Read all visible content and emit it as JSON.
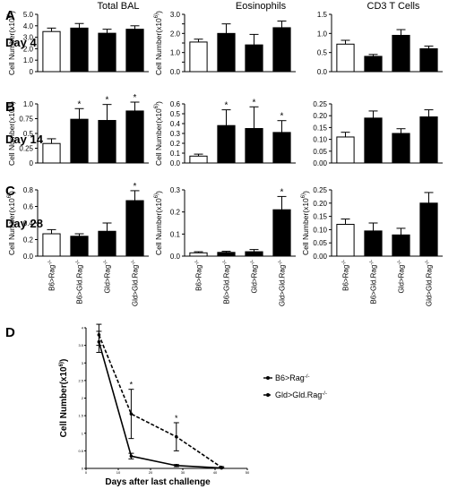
{
  "panel_labels": [
    "A",
    "B",
    "C",
    "D"
  ],
  "row_labels": [
    "Day 4",
    "Day 14",
    "Day 28"
  ],
  "column_titles": [
    "Total BAL",
    "Eosinophils",
    "CD3 T Cells"
  ],
  "x_tick_labels": [
    "B6>Rag",
    "B6>Gld.Rag",
    "Gld>Rag",
    "Gld>Gld.Rag"
  ],
  "x_tick_superscript": "-/-",
  "bar_colors": [
    "#ffffff",
    "#000000",
    "#000000",
    "#000000"
  ],
  "chart_data": [
    {
      "type": "bar",
      "panel": "A",
      "row": "Day 4",
      "title": "Total BAL",
      "ylabel": "Cell Number(x10^6)",
      "ylim": [
        0,
        5
      ],
      "yticks": [
        0,
        1,
        2,
        3,
        4,
        5
      ],
      "ytick_labels": [
        "0",
        "1.0",
        "2.0",
        "3.0",
        "4.0",
        "5.0"
      ],
      "values": [
        3.5,
        3.8,
        3.35,
        3.7
      ],
      "errors": [
        0.3,
        0.4,
        0.35,
        0.3
      ],
      "significant": [
        false,
        false,
        false,
        false
      ]
    },
    {
      "type": "bar",
      "panel": "A",
      "row": "Day 4",
      "title": "Eosinophils",
      "ylabel": "Cell Number(x10^6)",
      "ylim": [
        0,
        3
      ],
      "yticks": [
        0,
        0.5,
        1.0,
        1.5,
        2.0,
        2.5,
        3.0
      ],
      "ytick_labels": [
        "0.0",
        "",
        "1.0",
        "",
        "2.0",
        "",
        "3.0"
      ],
      "values": [
        1.55,
        2.0,
        1.4,
        2.3
      ],
      "errors": [
        0.15,
        0.5,
        0.55,
        0.35
      ],
      "significant": [
        false,
        false,
        false,
        false
      ]
    },
    {
      "type": "bar",
      "panel": "A",
      "row": "Day 4",
      "title": "CD3 T Cells",
      "ylabel": "",
      "ylim": [
        0,
        1.5
      ],
      "yticks": [
        0,
        0.5,
        1.0,
        1.5
      ],
      "ytick_labels": [
        "0.0",
        "0.5",
        "1.0",
        "1.5"
      ],
      "values": [
        0.72,
        0.4,
        0.95,
        0.6
      ],
      "errors": [
        0.1,
        0.05,
        0.15,
        0.07
      ],
      "significant": [
        false,
        false,
        false,
        false
      ]
    },
    {
      "type": "bar",
      "panel": "B",
      "row": "Day 14",
      "title": "",
      "ylabel": "Cell Number(x10^6)",
      "ylim": [
        0,
        1.0
      ],
      "yticks": [
        0,
        0.25,
        0.5,
        0.75,
        1.0
      ],
      "ytick_labels": [
        "0",
        "0.25",
        "0.5",
        "0.75",
        "1.0"
      ],
      "values": [
        0.33,
        0.74,
        0.72,
        0.88
      ],
      "errors": [
        0.08,
        0.18,
        0.27,
        0.15
      ],
      "significant": [
        false,
        true,
        true,
        true
      ]
    },
    {
      "type": "bar",
      "panel": "B",
      "row": "Day 14",
      "title": "",
      "ylabel": "Cell Number(x10^6)",
      "ylim": [
        0,
        0.6
      ],
      "yticks": [
        0,
        0.1,
        0.2,
        0.3,
        0.4,
        0.5,
        0.6
      ],
      "ytick_labels": [
        "0.0",
        "0.1",
        "0.2",
        "0.3",
        "0.4",
        "0.5",
        "0.6"
      ],
      "values": [
        0.07,
        0.38,
        0.35,
        0.31
      ],
      "errors": [
        0.02,
        0.16,
        0.22,
        0.12
      ],
      "significant": [
        false,
        true,
        true,
        true
      ]
    },
    {
      "type": "bar",
      "panel": "B",
      "row": "Day 14",
      "title": "",
      "ylabel": "",
      "ylim": [
        0,
        0.25
      ],
      "yticks": [
        0,
        0.05,
        0.1,
        0.15,
        0.2,
        0.25
      ],
      "ytick_labels": [
        "0.00",
        "0.05",
        "0.10",
        "0.15",
        "0.20",
        "0.25"
      ],
      "values": [
        0.11,
        0.19,
        0.125,
        0.195
      ],
      "errors": [
        0.02,
        0.03,
        0.02,
        0.03
      ],
      "significant": [
        false,
        false,
        false,
        false
      ]
    },
    {
      "type": "bar",
      "panel": "C",
      "row": "Day 28",
      "title": "",
      "ylabel": "Cell Number(x10^6)",
      "ylim": [
        0,
        0.8
      ],
      "yticks": [
        0,
        0.2,
        0.4,
        0.6,
        0.8
      ],
      "ytick_labels": [
        "0.0",
        "0.2",
        "0.4",
        "0.6",
        "0.8"
      ],
      "values": [
        0.27,
        0.24,
        0.3,
        0.67
      ],
      "errors": [
        0.05,
        0.03,
        0.1,
        0.12
      ],
      "significant": [
        false,
        false,
        false,
        true
      ]
    },
    {
      "type": "bar",
      "panel": "C",
      "row": "Day 28",
      "title": "",
      "ylabel": "Cell Number(x10^6)",
      "ylim": [
        0,
        0.3
      ],
      "yticks": [
        0,
        0.1,
        0.2,
        0.3
      ],
      "ytick_labels": [
        "0.0",
        "0.1",
        "0.2",
        "0.3"
      ],
      "values": [
        0.015,
        0.017,
        0.02,
        0.21
      ],
      "errors": [
        0.005,
        0.005,
        0.01,
        0.06
      ],
      "significant": [
        false,
        false,
        false,
        true
      ]
    },
    {
      "type": "bar",
      "panel": "C",
      "row": "Day 28",
      "title": "",
      "ylabel": "Cell Number(x10^6)",
      "ylim": [
        0,
        0.25
      ],
      "yticks": [
        0,
        0.05,
        0.1,
        0.15,
        0.2,
        0.25
      ],
      "ytick_labels": [
        "0.00",
        "0.05",
        "0.10",
        "0.15",
        "0.20",
        "0.25"
      ],
      "values": [
        0.12,
        0.095,
        0.08,
        0.2
      ],
      "errors": [
        0.02,
        0.03,
        0.025,
        0.04
      ],
      "significant": [
        false,
        false,
        false,
        false
      ]
    },
    {
      "type": "line",
      "panel": "D",
      "title": "",
      "xlabel": "Days after last challenge",
      "ylabel": "Cell Number(x10^6)",
      "xlim": [
        0,
        50
      ],
      "xticks": [
        0,
        10,
        20,
        30,
        40,
        50
      ],
      "ylim": [
        0,
        4
      ],
      "yticks": [
        0,
        0.5,
        1,
        1.5,
        2,
        2.5,
        3,
        3.5,
        4
      ],
      "x": [
        4,
        14,
        28,
        42
      ],
      "series": [
        {
          "name": "B6>Rag-/-",
          "dashed": false,
          "values": [
            3.6,
            0.35,
            0.08,
            0.01
          ],
          "errors": [
            0.3,
            0.08,
            0.03,
            0.01
          ]
        },
        {
          "name": "Gld>Gld.Rag-/-",
          "dashed": true,
          "values": [
            3.8,
            1.55,
            0.9,
            0.03
          ],
          "errors": [
            0.3,
            0.7,
            0.4,
            0.02
          ]
        }
      ],
      "significant_x": [
        14,
        28
      ]
    }
  ]
}
